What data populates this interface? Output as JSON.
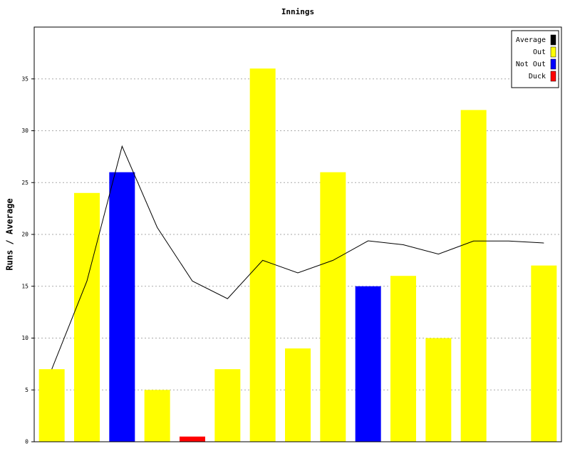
{
  "chart_data": {
    "type": "bar",
    "title": "Innings",
    "y_label": "Runs / Average",
    "categories": [
      null,
      null,
      null,
      null,
      null,
      null,
      null,
      null,
      null,
      null,
      null,
      null,
      null,
      null,
      null
    ],
    "series": [
      {
        "name": "Average",
        "color": "#000000",
        "type": "line",
        "values": [
          7,
          15.5,
          28.5,
          20.67,
          15.5,
          13.8,
          17.5,
          16.29,
          17.5,
          19.38,
          19.0,
          18.1,
          19.36,
          19.36,
          19.17
        ]
      },
      {
        "name": "Out",
        "color": "#ffff00",
        "values": [
          7,
          24,
          null,
          5,
          null,
          7,
          36,
          9,
          26,
          null,
          16,
          10,
          32,
          null,
          17
        ]
      },
      {
        "name": "Not Out",
        "color": "#0000ff",
        "values": [
          null,
          null,
          26,
          null,
          null,
          null,
          null,
          null,
          null,
          15,
          null,
          null,
          null,
          null,
          null
        ]
      },
      {
        "name": "Duck",
        "color": "#ff0000",
        "values": [
          null,
          null,
          null,
          null,
          0.5,
          null,
          null,
          null,
          null,
          null,
          null,
          null,
          null,
          null,
          null
        ]
      }
    ],
    "ylim": [
      0,
      40
    ],
    "yticks": [
      0,
      5,
      10,
      15,
      20,
      25,
      30,
      35
    ],
    "grid": true,
    "legend": "top-right"
  }
}
